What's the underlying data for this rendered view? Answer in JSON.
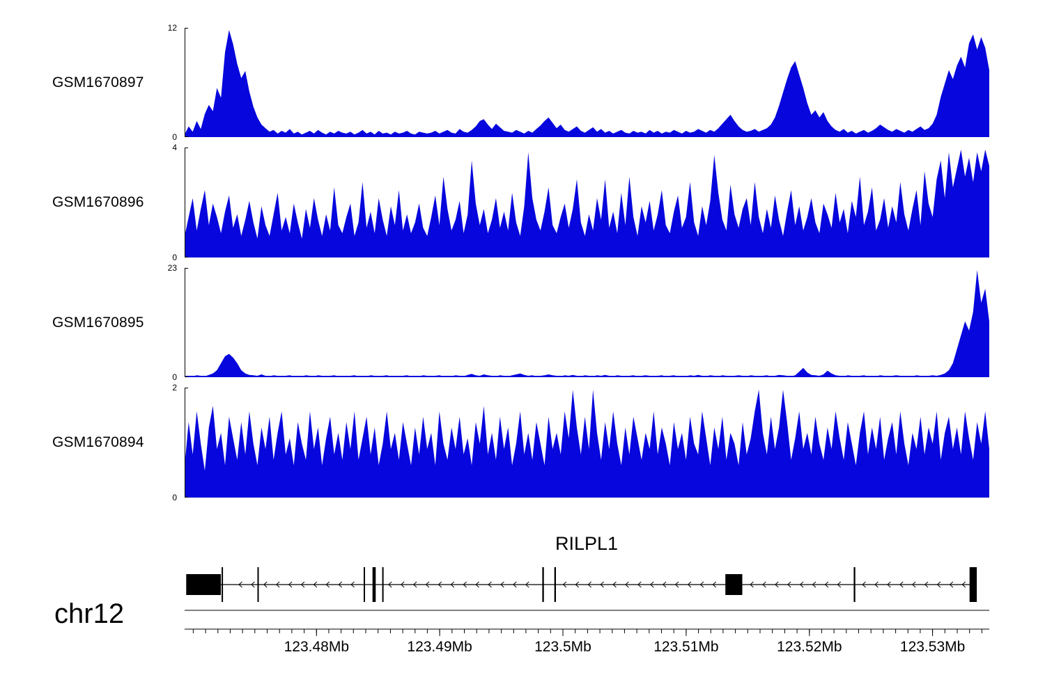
{
  "colors": {
    "signal": "#0606dd",
    "gene": "#000000",
    "axis": "#000000"
  },
  "chromosome_label": "chr12",
  "gene_track": {
    "gene_name": "RILPL1",
    "strand": "-",
    "span": [
      0.002,
      0.984
    ],
    "arrow_start": 0.052,
    "arrow_end": 0.972,
    "arrow_spacing": 0.0155,
    "exons": [
      {
        "start": 0.002,
        "end": 0.045,
        "kind": "box"
      },
      {
        "start": 0.046,
        "end": 0.0475,
        "kind": "line"
      },
      {
        "start": 0.0905,
        "end": 0.092,
        "kind": "line"
      },
      {
        "start": 0.2225,
        "end": 0.224,
        "kind": "line"
      },
      {
        "start": 0.2335,
        "end": 0.2375,
        "kind": "line"
      },
      {
        "start": 0.2455,
        "end": 0.247,
        "kind": "line"
      },
      {
        "start": 0.4445,
        "end": 0.4465,
        "kind": "line"
      },
      {
        "start": 0.4595,
        "end": 0.4615,
        "kind": "line"
      },
      {
        "start": 0.672,
        "end": 0.693,
        "kind": "box"
      },
      {
        "start": 0.8315,
        "end": 0.8335,
        "kind": "line"
      },
      {
        "start": 0.9755,
        "end": 0.9845,
        "kind": "line"
      }
    ]
  },
  "axis": {
    "start_mb": 123.4693,
    "end_mb": 123.5346,
    "minor_step": 0.001,
    "major_ticks": [
      {
        "mb": 123.48,
        "label": "123.48Mb"
      },
      {
        "mb": 123.49,
        "label": "123.49Mb"
      },
      {
        "mb": 123.5,
        "label": "123.5Mb"
      },
      {
        "mb": 123.51,
        "label": "123.51Mb"
      },
      {
        "mb": 123.52,
        "label": "123.52Mb"
      },
      {
        "mb": 123.53,
        "label": "123.53Mb"
      }
    ]
  },
  "chart_data": [
    {
      "type": "area",
      "name": "GSM1670897",
      "ymax_label": "12",
      "ymin_label": "0",
      "ylim": [
        0,
        12
      ],
      "x_range_mb": [
        123.4693,
        123.5346
      ],
      "values": [
        0.3,
        1.2,
        0.6,
        1.8,
        0.9,
        2.6,
        3.6,
        2.9,
        5.5,
        4.4,
        9.5,
        12,
        10.4,
        8.2,
        6.6,
        7.4,
        5.1,
        3.4,
        2.2,
        1.4,
        1.0,
        0.6,
        0.8,
        0.4,
        0.7,
        0.5,
        0.9,
        0.4,
        0.6,
        0.3,
        0.5,
        0.7,
        0.4,
        0.8,
        0.5,
        0.3,
        0.6,
        0.4,
        0.7,
        0.5,
        0.4,
        0.6,
        0.3,
        0.5,
        0.8,
        0.4,
        0.6,
        0.3,
        0.7,
        0.4,
        0.5,
        0.3,
        0.6,
        0.4,
        0.5,
        0.7,
        0.4,
        0.3,
        0.6,
        0.5,
        0.4,
        0.5,
        0.7,
        0.4,
        0.6,
        0.8,
        0.5,
        0.4,
        0.9,
        0.6,
        0.5,
        0.8,
        1.2,
        1.8,
        2.0,
        1.4,
        0.9,
        1.5,
        1.1,
        0.7,
        0.6,
        0.5,
        0.8,
        0.6,
        0.4,
        0.7,
        0.5,
        0.9,
        1.3,
        1.8,
        2.2,
        1.6,
        1.0,
        1.4,
        0.8,
        0.6,
        0.9,
        1.2,
        0.7,
        0.5,
        0.8,
        1.1,
        0.6,
        0.9,
        0.5,
        0.7,
        0.4,
        0.6,
        0.8,
        0.5,
        0.4,
        0.7,
        0.5,
        0.6,
        0.4,
        0.8,
        0.5,
        0.7,
        0.4,
        0.6,
        0.5,
        0.8,
        0.6,
        0.4,
        0.7,
        0.5,
        0.6,
        0.9,
        0.7,
        0.5,
        0.8,
        0.6,
        1.0,
        1.5,
        2.0,
        2.5,
        1.8,
        1.2,
        0.8,
        0.6,
        0.7,
        0.9,
        0.6,
        0.8,
        1.0,
        1.4,
        2.2,
        3.5,
        5.0,
        6.5,
        7.8,
        8.5,
        7.0,
        5.5,
        3.8,
        2.5,
        3.0,
        2.2,
        2.8,
        1.8,
        1.2,
        0.8,
        0.6,
        0.9,
        0.5,
        0.7,
        0.4,
        0.6,
        0.8,
        0.5,
        0.7,
        1.0,
        1.4,
        1.1,
        0.8,
        0.6,
        0.9,
        0.7,
        0.5,
        0.8,
        0.6,
        0.9,
        1.2,
        0.8,
        1.0,
        1.5,
        2.5,
        4.5,
        6.0,
        7.5,
        6.5,
        8.0,
        9.0,
        7.8,
        10.5,
        11.5,
        9.8,
        11.2,
        10.0,
        7.5
      ]
    },
    {
      "type": "area",
      "name": "GSM1670896",
      "ymax_label": "4",
      "ymin_label": "0",
      "ylim": [
        0,
        4
      ],
      "x_range_mb": [
        123.4693,
        123.5346
      ],
      "values": [
        0.8,
        1.5,
        2.2,
        1.0,
        1.8,
        2.5,
        1.2,
        2.0,
        1.5,
        0.9,
        1.7,
        2.3,
        1.1,
        1.6,
        0.8,
        1.4,
        2.1,
        1.3,
        0.7,
        1.9,
        1.2,
        0.8,
        1.6,
        2.4,
        1.0,
        1.5,
        0.9,
        2.0,
        1.3,
        0.7,
        1.8,
        1.1,
        2.2,
        1.4,
        0.8,
        1.6,
        1.0,
        2.6,
        1.2,
        0.9,
        1.5,
        2.0,
        0.8,
        1.3,
        2.8,
        1.1,
        1.7,
        0.9,
        2.2,
        1.4,
        0.8,
        1.9,
        1.2,
        2.5,
        1.0,
        1.6,
        0.9,
        1.3,
        2.0,
        1.1,
        0.8,
        1.5,
        2.3,
        1.2,
        3.0,
        1.8,
        1.0,
        1.4,
        2.1,
        0.9,
        1.6,
        3.6,
        2.0,
        1.2,
        1.8,
        0.9,
        1.4,
        2.2,
        1.1,
        1.7,
        1.0,
        2.4,
        1.3,
        0.8,
        1.9,
        3.9,
        2.2,
        1.4,
        1.0,
        1.7,
        2.6,
        1.2,
        0.9,
        1.5,
        2.0,
        1.1,
        1.8,
        2.9,
        1.3,
        0.8,
        1.6,
        1.0,
        2.2,
        1.4,
        2.9,
        1.1,
        1.7,
        0.9,
        2.4,
        1.2,
        3.0,
        1.5,
        0.8,
        1.9,
        1.3,
        2.1,
        1.0,
        1.6,
        2.5,
        1.2,
        0.9,
        1.7,
        2.3,
        1.1,
        1.5,
        2.8,
        1.3,
        0.8,
        1.9,
        1.2,
        2.1,
        3.8,
        2.4,
        1.4,
        1.0,
        2.7,
        1.6,
        1.1,
        1.8,
        2.2,
        1.2,
        2.8,
        1.5,
        0.9,
        1.8,
        1.1,
        2.3,
        1.4,
        0.8,
        1.7,
        2.5,
        1.2,
        1.9,
        1.0,
        1.5,
        2.2,
        1.3,
        0.9,
        2.0,
        1.6,
        1.1,
        2.4,
        1.3,
        1.8,
        0.9,
        2.1,
        1.5,
        3.0,
        1.2,
        1.7,
        2.6,
        1.0,
        1.4,
        2.2,
        1.1,
        1.9,
        1.3,
        2.8,
        1.6,
        1.0,
        1.8,
        2.5,
        1.2,
        3.2,
        2.0,
        1.5,
        2.9,
        3.6,
        2.2,
        3.9,
        2.6,
        3.3,
        4.0,
        3.0,
        3.7,
        2.8,
        3.9,
        3.2,
        4.0,
        3.4
      ]
    },
    {
      "type": "area",
      "name": "GSM1670895",
      "ymax_label": "23",
      "ymin_label": "0",
      "ylim": [
        0,
        23
      ],
      "x_range_mb": [
        123.4693,
        123.5346
      ],
      "values": [
        0.2,
        0.3,
        0.2,
        0.4,
        0.3,
        0.2,
        0.5,
        0.8,
        1.5,
        3.0,
        4.5,
        5.0,
        4.2,
        3.0,
        1.5,
        0.8,
        0.5,
        0.4,
        0.3,
        0.6,
        0.3,
        0.2,
        0.4,
        0.3,
        0.2,
        0.3,
        0.4,
        0.2,
        0.3,
        0.2,
        0.4,
        0.3,
        0.2,
        0.4,
        0.3,
        0.2,
        0.3,
        0.4,
        0.2,
        0.3,
        0.2,
        0.3,
        0.4,
        0.2,
        0.3,
        0.2,
        0.4,
        0.3,
        0.2,
        0.3,
        0.4,
        0.2,
        0.3,
        0.2,
        0.3,
        0.4,
        0.2,
        0.3,
        0.2,
        0.4,
        0.3,
        0.2,
        0.3,
        0.4,
        0.2,
        0.3,
        0.2,
        0.4,
        0.3,
        0.2,
        0.5,
        0.7,
        0.4,
        0.3,
        0.6,
        0.4,
        0.3,
        0.2,
        0.4,
        0.3,
        0.2,
        0.4,
        0.6,
        0.8,
        0.5,
        0.3,
        0.4,
        0.2,
        0.3,
        0.4,
        0.6,
        0.4,
        0.3,
        0.2,
        0.4,
        0.3,
        0.5,
        0.3,
        0.2,
        0.4,
        0.3,
        0.2,
        0.4,
        0.3,
        0.5,
        0.3,
        0.2,
        0.4,
        0.3,
        0.2,
        0.3,
        0.4,
        0.2,
        0.3,
        0.4,
        0.3,
        0.2,
        0.3,
        0.4,
        0.2,
        0.3,
        0.4,
        0.2,
        0.3,
        0.2,
        0.4,
        0.3,
        0.5,
        0.3,
        0.2,
        0.4,
        0.3,
        0.2,
        0.4,
        0.3,
        0.2,
        0.3,
        0.4,
        0.3,
        0.2,
        0.4,
        0.3,
        0.2,
        0.3,
        0.4,
        0.2,
        0.3,
        0.5,
        0.4,
        0.3,
        0.2,
        0.4,
        1.2,
        2.0,
        1.0,
        0.5,
        0.4,
        0.3,
        0.6,
        1.4,
        0.8,
        0.4,
        0.3,
        0.2,
        0.4,
        0.3,
        0.2,
        0.3,
        0.4,
        0.2,
        0.3,
        0.2,
        0.4,
        0.3,
        0.2,
        0.3,
        0.4,
        0.3,
        0.2,
        0.3,
        0.2,
        0.4,
        0.3,
        0.2,
        0.3,
        0.4,
        0.3,
        0.5,
        0.8,
        1.5,
        3.0,
        6.0,
        9.0,
        12.0,
        10.0,
        14.0,
        23.0,
        16.0,
        19.0,
        12.0
      ]
    },
    {
      "type": "area",
      "name": "GSM1670894",
      "ymax_label": "2",
      "ymin_label": "0",
      "ylim": [
        0,
        2
      ],
      "x_range_mb": [
        123.4693,
        123.5346
      ],
      "values": [
        0.6,
        1.4,
        0.8,
        1.6,
        1.0,
        0.5,
        1.3,
        1.7,
        0.9,
        1.2,
        0.6,
        1.5,
        1.1,
        0.7,
        1.4,
        0.8,
        1.6,
        1.0,
        0.6,
        1.3,
        0.9,
        1.5,
        0.7,
        1.2,
        1.6,
        0.8,
        1.1,
        0.6,
        1.4,
        1.0,
        0.7,
        1.6,
        0.9,
        1.3,
        0.6,
        1.1,
        1.5,
        0.8,
        1.2,
        0.7,
        1.4,
        0.9,
        1.6,
        0.7,
        1.1,
        1.5,
        0.8,
        1.3,
        0.6,
        1.0,
        1.6,
        0.9,
        1.2,
        0.7,
        1.4,
        1.0,
        0.6,
        1.3,
        0.8,
        1.5,
        0.9,
        1.2,
        0.6,
        1.6,
        1.0,
        0.7,
        1.3,
        0.9,
        1.5,
        0.8,
        1.1,
        0.6,
        1.4,
        1.0,
        1.7,
        0.8,
        1.2,
        0.7,
        1.5,
        0.9,
        1.3,
        0.6,
        1.0,
        1.6,
        0.8,
        1.2,
        0.7,
        1.4,
        1.0,
        0.6,
        1.5,
        0.9,
        1.2,
        0.8,
        1.6,
        1.1,
        2.0,
        1.3,
        0.8,
        1.5,
        0.9,
        2.0,
        1.2,
        0.7,
        1.4,
        0.9,
        1.6,
        1.0,
        0.6,
        1.3,
        0.8,
        1.5,
        1.1,
        0.7,
        1.2,
        0.9,
        1.6,
        0.8,
        1.3,
        1.0,
        0.6,
        1.4,
        0.9,
        1.2,
        0.7,
        1.5,
        1.0,
        0.8,
        1.6,
        1.1,
        0.6,
        1.3,
        0.9,
        1.5,
        0.7,
        1.2,
        1.0,
        0.6,
        1.4,
        0.8,
        1.1,
        1.6,
        2.0,
        1.2,
        0.8,
        1.5,
        0.9,
        1.3,
        2.0,
        1.4,
        0.7,
        1.1,
        1.6,
        0.9,
        1.2,
        0.8,
        1.5,
        1.0,
        0.7,
        1.3,
        0.9,
        1.6,
        1.1,
        0.7,
        1.4,
        1.0,
        0.6,
        1.2,
        1.6,
        0.8,
        1.3,
        0.9,
        1.5,
        0.7,
        1.1,
        1.4,
        0.8,
        1.6,
        1.0,
        0.6,
        1.2,
        0.9,
        1.5,
        0.8,
        1.3,
        1.0,
        1.6,
        0.7,
        1.2,
        1.5,
        0.9,
        1.3,
        0.8,
        1.6,
        1.1,
        0.7,
        1.4,
        1.0,
        1.6,
        0.9
      ]
    }
  ]
}
